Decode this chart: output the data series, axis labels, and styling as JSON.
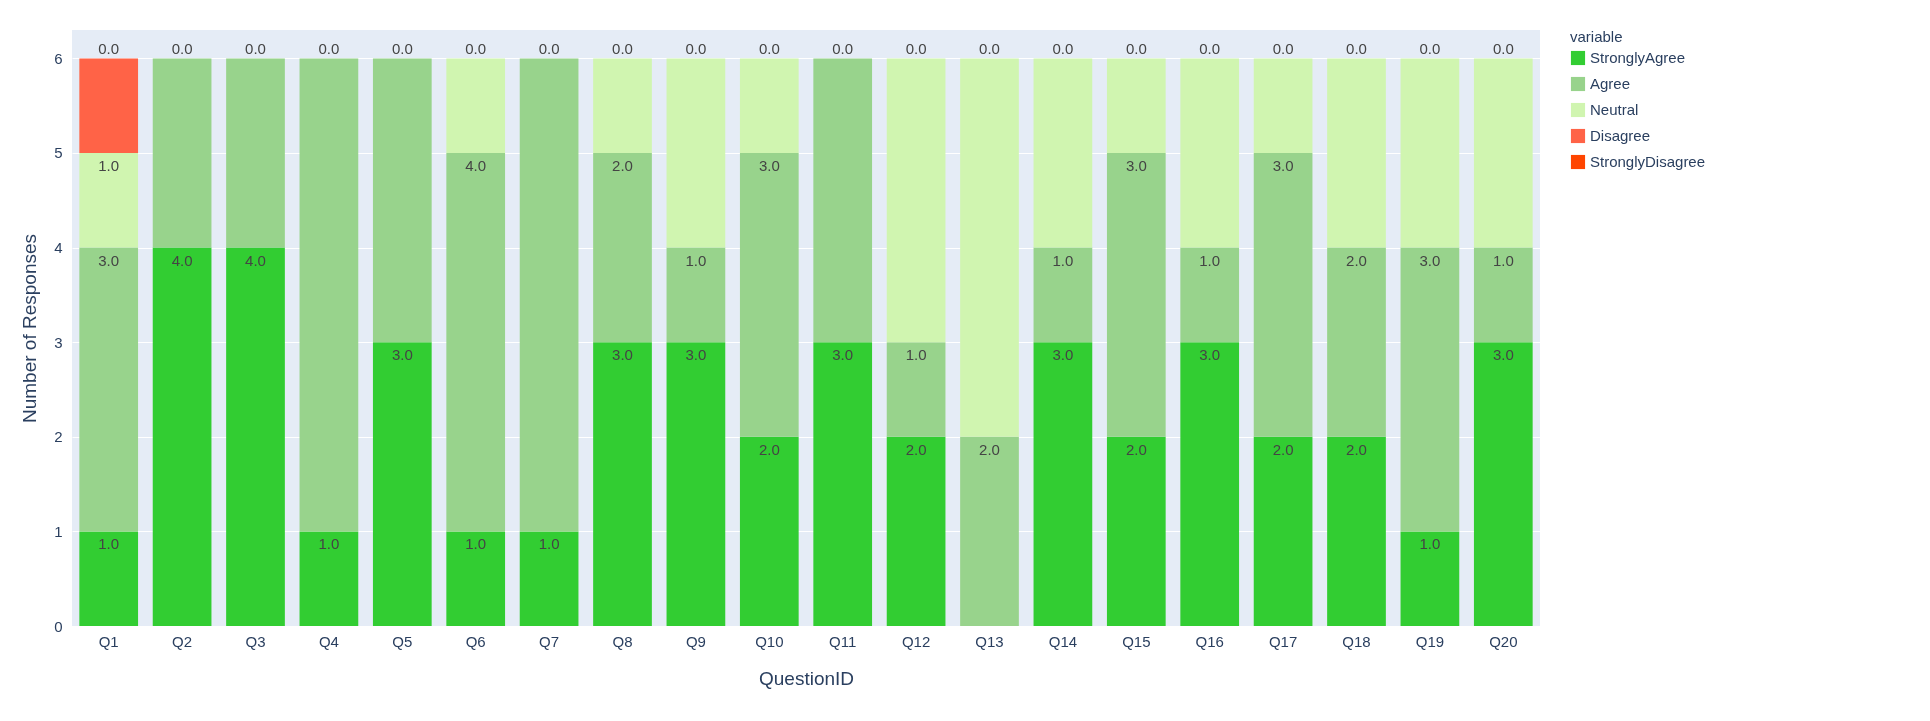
{
  "chart_data": {
    "type": "bar",
    "stacked": true,
    "xlabel": "QuestionID",
    "ylabel": "Number of Responses",
    "legend_title": "variable",
    "legend": "top right",
    "grid": "y",
    "categories": [
      "Q1",
      "Q2",
      "Q3",
      "Q4",
      "Q5",
      "Q6",
      "Q7",
      "Q8",
      "Q9",
      "Q10",
      "Q11",
      "Q12",
      "Q13",
      "Q14",
      "Q15",
      "Q16",
      "Q17",
      "Q18",
      "Q19",
      "Q20"
    ],
    "ylim": [
      0,
      6.3
    ],
    "yticks": [
      0,
      1,
      2,
      3,
      4,
      5,
      6
    ],
    "series": [
      {
        "name": "StronglyAgree",
        "color": "#32cd32",
        "values": [
          1,
          4,
          4,
          1,
          3,
          1,
          1,
          3,
          3,
          2,
          3,
          2,
          0,
          3,
          2,
          3,
          2,
          2,
          1,
          3
        ],
        "value_labels": [
          "1.0",
          "4.0",
          "4.0",
          "1.0",
          "3.0",
          "1.0",
          "1.0",
          "3.0",
          "3.0",
          "2.0",
          "3.0",
          "2.0",
          null,
          "3.0",
          "2.0",
          "3.0",
          "2.0",
          "2.0",
          "1.0",
          "3.0"
        ]
      },
      {
        "name": "Agree",
        "color": "#98d38c",
        "values": [
          3,
          2,
          2,
          5,
          3,
          4,
          5,
          2,
          1,
          3,
          3,
          1,
          2,
          1,
          3,
          1,
          3,
          2,
          3,
          1
        ],
        "value_labels": [
          "3.0",
          null,
          null,
          null,
          null,
          "4.0",
          null,
          "2.0",
          "1.0",
          "3.0",
          null,
          "1.0",
          "2.0",
          "1.0",
          "3.0",
          "1.0",
          "3.0",
          "2.0",
          "3.0",
          "1.0"
        ]
      },
      {
        "name": "Neutral",
        "color": "#d0f5b0",
        "values": [
          1,
          0,
          0,
          0,
          0,
          1,
          0,
          1,
          2,
          1,
          0,
          3,
          4,
          2,
          1,
          2,
          1,
          2,
          2,
          2
        ],
        "value_labels": [
          "1.0",
          null,
          null,
          null,
          null,
          null,
          null,
          null,
          null,
          null,
          null,
          null,
          null,
          null,
          null,
          null,
          null,
          null,
          null,
          null
        ]
      },
      {
        "name": "Disagree",
        "color": "#ff6347",
        "values": [
          1,
          0,
          0,
          0,
          0,
          0,
          0,
          0,
          0,
          0,
          0,
          0,
          0,
          0,
          0,
          0,
          0,
          0,
          0,
          0
        ]
      },
      {
        "name": "StronglyDisagree",
        "color": "#ff4500",
        "values": [
          0,
          0,
          0,
          0,
          0,
          0,
          0,
          0,
          0,
          0,
          0,
          0,
          0,
          0,
          0,
          0,
          0,
          0,
          0,
          0
        ],
        "value_labels": [
          "0.0",
          "0.0",
          "0.0",
          "0.0",
          "0.0",
          "0.0",
          "0.0",
          "0.0",
          "0.0",
          "0.0",
          "0.0",
          "0.0",
          "0.0",
          "0.0",
          "0.0",
          "0.0",
          "0.0",
          "0.0",
          "0.0",
          "0.0"
        ]
      }
    ]
  }
}
